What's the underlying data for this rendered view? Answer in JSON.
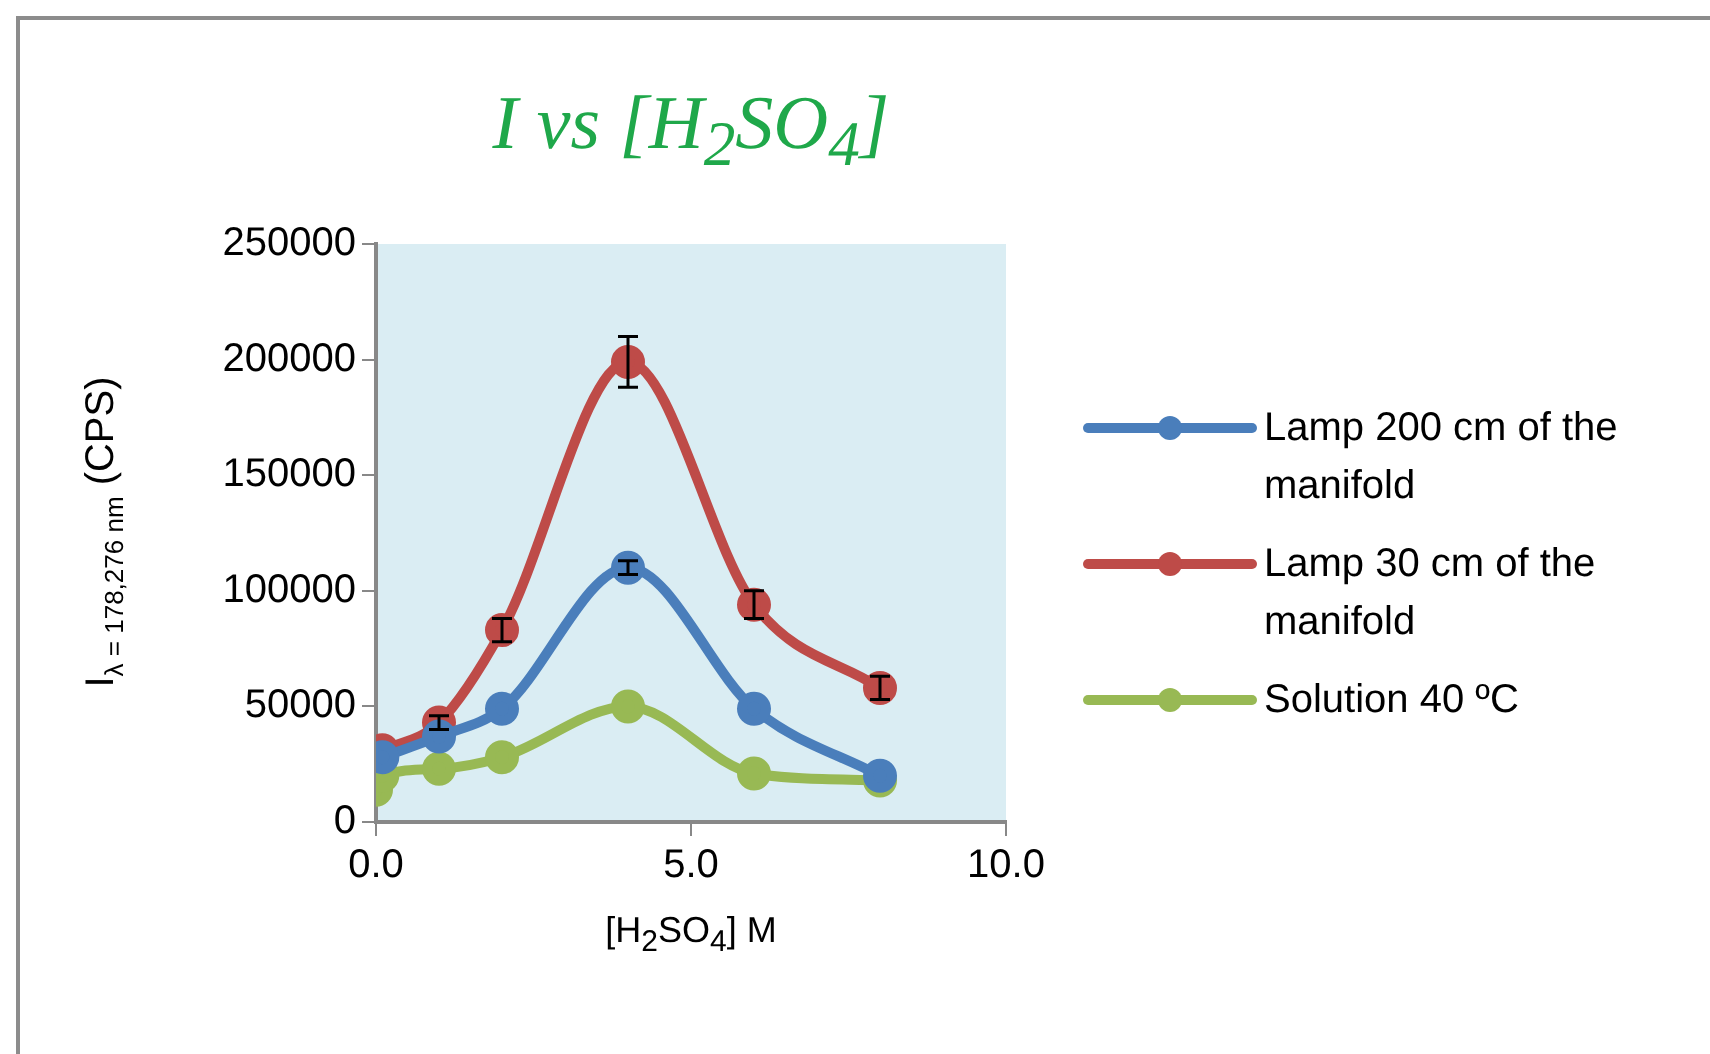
{
  "chart_data": {
    "type": "line",
    "title": "I vs [H$_{2}$SO$_{4}$]",
    "xlabel": "[H$_{2}$SO$_{4}$] M",
    "ylabel": "I$_{λ = 178,276 nm}$ (CPS)",
    "xlim": [
      0,
      10
    ],
    "xticks": [
      {
        "value": 0,
        "label": "0.0"
      },
      {
        "value": 5,
        "label": "5.0"
      },
      {
        "value": 10,
        "label": "10.0"
      }
    ],
    "ylim": [
      0,
      250000
    ],
    "yticks": [
      0,
      50000,
      100000,
      150000,
      200000,
      250000
    ],
    "grid": false,
    "legend": "right",
    "marker": "circle",
    "line_style": "solid",
    "series": [
      {
        "name": "Lamp 200 cm of the manifold",
        "color": "#4a7ebb",
        "x": [
          0.1,
          1,
          2,
          4,
          6,
          8
        ],
        "values": [
          28000,
          37000,
          49000,
          110000,
          49000,
          20000
        ],
        "errors": [
          null,
          null,
          null,
          3000,
          null,
          null
        ]
      },
      {
        "name": "Lamp 30 cm of the manifold",
        "color": "#be4b48",
        "x": [
          0.1,
          1,
          2,
          4,
          6,
          8
        ],
        "values": [
          31000,
          43000,
          83000,
          199000,
          94000,
          58000
        ],
        "errors": [
          null,
          3000,
          5000,
          11000,
          6000,
          5000
        ]
      },
      {
        "name": "Solution 40 ºC",
        "color": "#98b954",
        "x": [
          0,
          0.1,
          1,
          2,
          4,
          6,
          8
        ],
        "values": [
          14000,
          20000,
          23000,
          28000,
          50000,
          21000,
          18000
        ]
      }
    ]
  }
}
